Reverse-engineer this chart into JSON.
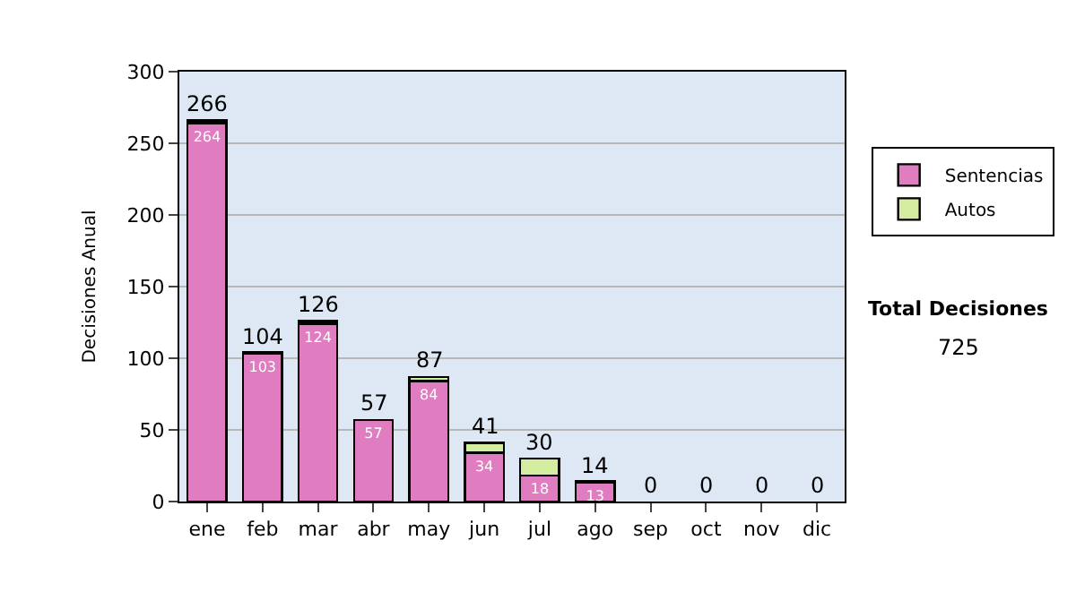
{
  "chart_data": {
    "type": "bar",
    "ylabel": "Decisiones Anual",
    "categories": [
      "ene",
      "feb",
      "mar",
      "abr",
      "may",
      "jun",
      "jul",
      "ago",
      "sep",
      "oct",
      "nov",
      "dic"
    ],
    "series": [
      {
        "name": "Sentencias",
        "color": "#e07cc0",
        "values": [
          264,
          103,
          124,
          57,
          84,
          34,
          18,
          13,
          0,
          0,
          0,
          0
        ],
        "value_labels": [
          "264",
          "103",
          "124",
          "57",
          "84",
          "34",
          "18",
          "13",
          null,
          null,
          null,
          null
        ]
      },
      {
        "name": "Autos",
        "color": "#d4eca0",
        "values": [
          2,
          1,
          2,
          0,
          3,
          7,
          12,
          1,
          0,
          0,
          0,
          0
        ]
      }
    ],
    "stacked": true,
    "totals": [
      "266",
      "104",
      "126",
      "57",
      "87",
      "41",
      "30",
      "14",
      "0",
      "0",
      "0",
      "0"
    ],
    "ylim": [
      0,
      300
    ],
    "yticks": [
      0,
      50,
      100,
      150,
      200,
      250,
      300
    ],
    "grid": "y",
    "legend": "right",
    "annotations": [
      "Total Decisiones",
      "725"
    ]
  }
}
